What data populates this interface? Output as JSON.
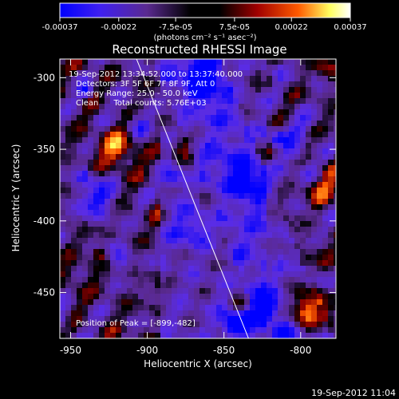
{
  "chart_data": {
    "type": "heatmap",
    "title": "Reconstructed RHESSI Image",
    "xlabel": "Heliocentric X (arcsec)",
    "ylabel": "Heliocentric Y (arcsec)",
    "xlim": [
      -957,
      -777
    ],
    "ylim": [
      -482,
      -287
    ],
    "x_ticks": [
      -950,
      -900,
      -850,
      -800
    ],
    "x_tick_labels": [
      "-950",
      "-900",
      "-850",
      "-800"
    ],
    "y_ticks": [
      -300,
      -350,
      -400,
      -450
    ],
    "y_tick_labels": [
      "-300",
      "-350",
      "-400",
      "-450"
    ],
    "colorbar": {
      "ticks": [
        -0.00037,
        -0.00022,
        -7.5e-05,
        7.5e-05,
        0.00022,
        0.00037
      ],
      "tick_labels": [
        "-0.00037",
        "-0.00022",
        "-7.5e-05",
        "7.5e-05",
        "0.00022",
        "0.00037"
      ],
      "unit_label": "(photons cm⁻² s⁻¹ asec⁻²)",
      "range": [
        -0.00037,
        0.00037
      ],
      "colors": [
        "#0000ff",
        "#5a2ce6",
        "#5a2a90",
        "#000000",
        "#8a0000",
        "#ff5a00",
        "#ffff60",
        "#ffffff"
      ]
    },
    "annotations": [
      "19-Sep-2012 13:34:52.000 to 13:37:40.000",
      "Detectors: 3F 5F 6F 7F 8F 9F, Att 0",
      "Energy Range: 25.0 - 50.0 keV",
      "Clean      Total counts: 5.76E+03"
    ],
    "peak_label": "Position of Peak = [-899,-482]",
    "peak": [
      -899,
      -482
    ],
    "limb_line": [
      [
        -907,
        -287
      ],
      [
        -834,
        -482
      ]
    ],
    "timestamp": "19-Sep-2012 11:04"
  }
}
